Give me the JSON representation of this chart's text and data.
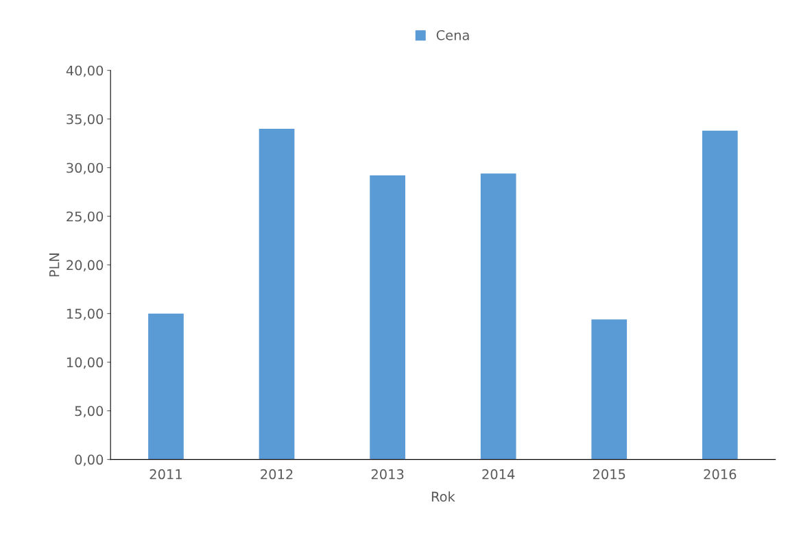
{
  "chart_data": {
    "type": "bar",
    "xlabel": "Rok",
    "ylabel": "PLN",
    "categories": [
      "2011",
      "2012",
      "2013",
      "2014",
      "2015",
      "2016"
    ],
    "series": [
      {
        "name": "Cena",
        "color": "#5b9bd5",
        "values": [
          15.0,
          34.0,
          29.2,
          29.4,
          14.4,
          33.8
        ]
      }
    ],
    "ylim": [
      0,
      40
    ],
    "yticks": [
      {
        "value": 0,
        "label": "0,00"
      },
      {
        "value": 5,
        "label": "5,00"
      },
      {
        "value": 10,
        "label": "10,00"
      },
      {
        "value": 15,
        "label": "15,00"
      },
      {
        "value": 20,
        "label": "20,00"
      },
      {
        "value": 25,
        "label": "25,00"
      },
      {
        "value": 30,
        "label": "30,00"
      },
      {
        "value": 35,
        "label": "35,00"
      },
      {
        "value": 40,
        "label": "40,00"
      }
    ],
    "grid": false,
    "legend": "top"
  }
}
